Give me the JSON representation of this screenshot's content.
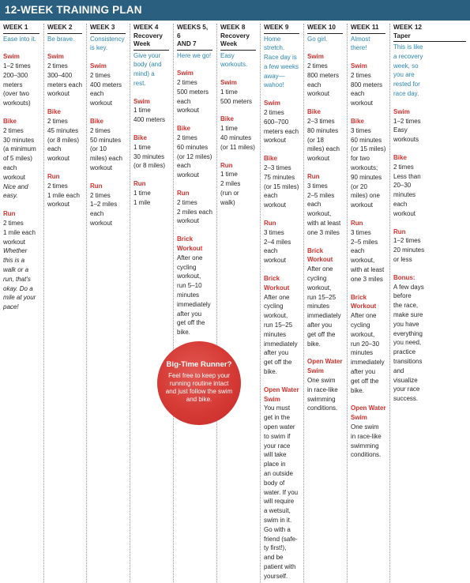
{
  "title": "12-WEEK TRAINING PLAN",
  "colors": {
    "header_bg": "#2a5f7f",
    "note": "#2c86b3",
    "section": "#d2322d",
    "badge": "#d63a35"
  },
  "badge": {
    "title": "Big-Time Runner?",
    "body": "Feel free to keep your running routine intact and just follow the swim and bike."
  },
  "weeks": [
    {
      "label": "WEEK 1",
      "note": "Ease into it.",
      "sections": [
        {
          "title": "Swim",
          "body": "1–2 times\n200–300\nmeters\n(over two\nworkouts)"
        },
        {
          "title": "Bike",
          "body": "2 times\n30 minutes\n(a minimum\nof 5 miles)\neach\nworkout",
          "extra": "Nice and\neasy."
        },
        {
          "title": "Run",
          "body": "2 times\n1 mile each\nworkout",
          "extra": "Whether\nthis is a\nwalk or a\nrun, that's\nokay. Do a\nmile at your\npace!"
        }
      ]
    },
    {
      "label": "WEEK 2",
      "note": "Be brave.",
      "sections": [
        {
          "title": "Swim",
          "body": "2 times\n300–400\nmeters each\nworkout"
        },
        {
          "title": "Bike",
          "body": "2 times\n45 minutes\n(or 8 miles)\neach\nworkout"
        },
        {
          "title": "Run",
          "body": "2 times\n1 mile each\nworkout"
        }
      ]
    },
    {
      "label": "WEEK 3",
      "note": "Consistency\nis key.",
      "sections": [
        {
          "title": "Swim",
          "body": "2 times\n400 meters\neach\nworkout"
        },
        {
          "title": "Bike",
          "body": "2 times\n50 minutes\n(or 10\nmiles) each\nworkout"
        },
        {
          "title": "Run",
          "body": "2 times\n1–2 miles\neach\nworkout"
        }
      ]
    },
    {
      "label": "WEEK 4",
      "sublabel": "Recovery\nWeek",
      "note": "Give your\nbody (and\nmind) a\nrest.",
      "sections": [
        {
          "title": "Swim",
          "body": "1 time\n400 meters"
        },
        {
          "title": "Bike",
          "body": "1 time\n30 minutes\n(or 8 miles)"
        },
        {
          "title": "Run",
          "body": "1 time\n1 mile"
        }
      ]
    },
    {
      "label": "WEEKS 5, 6\nAND 7",
      "note": "Here we go!",
      "sections": [
        {
          "title": "Swim",
          "body": "2 times\n500 meters\neach\nworkout"
        },
        {
          "title": "Bike",
          "body": "2 times\n60 minutes\n(or 12 miles)\neach\nworkout"
        },
        {
          "title": "Run",
          "body": "2 times\n2 miles each\nworkout"
        },
        {
          "title": "Brick\nWorkout",
          "body": "After one\ncycling\nworkout,\nrun 5–10\nminutes\nimmediately\nafter you\nget off the\nbike."
        }
      ]
    },
    {
      "label": "WEEK 8",
      "sublabel": "Recovery\nWeek",
      "note": "Easy\nworkouts.",
      "sections": [
        {
          "title": "Swim",
          "body": "1 time\n500 meters"
        },
        {
          "title": "Bike",
          "body": "1 time\n40 minutes\n(or 11 miles)"
        },
        {
          "title": "Run",
          "body": "1 time\n2 miles\n(run or\nwalk)"
        }
      ]
    },
    {
      "label": "WEEK 9",
      "note": "Home\nstretch.\nRace day is\na few weeks\naway—\nwahoo!",
      "sections": [
        {
          "title": "Swim",
          "body": "2 times\n600–700\nmeters each\nworkout"
        },
        {
          "title": "Bike",
          "body": "2–3 times\n75 minutes\n(or 15 miles)\neach\nworkout"
        },
        {
          "title": "Run",
          "body": "3 times\n2–4 miles\neach\nworkout"
        },
        {
          "title": "Brick\nWorkout",
          "body": "After one\ncycling\nworkout,\nrun 15–25\nminutes\nimmediately\nafter you\nget off the\nbike."
        },
        {
          "title": "Open Water\nSwim",
          "body": "You must\nget in the\nopen water\nto swim if\nyour race\nwill take\nplace in\nan outside\nbody of\nwater. If you\nwill require\na wetsuit,\nswim in it.\nGo with a\nfriend (safe-\nty first!),\nand be\npatient with\nyourself."
        }
      ]
    },
    {
      "label": "WEEK 10",
      "note": "Go girl.",
      "sections": [
        {
          "title": "Swim",
          "body": "2 times\n800 meters\neach\nworkout"
        },
        {
          "title": "Bike",
          "body": "2–3 times\n80 minutes\n(or 18\nmiles) each\nworkout"
        },
        {
          "title": "Run",
          "body": "3 times\n2–5 miles\neach\nworkout,\nwith at least\none 3 miles"
        },
        {
          "title": "Brick\nWorkout",
          "body": "After one\ncycling\nworkout,\nrun 15–25\nminutes\nimmediately\nafter you\nget off the\nbike."
        },
        {
          "title": "Open Water\nSwim",
          "body": "One swim\nin race-like\nswimming\nconditions."
        }
      ]
    },
    {
      "label": "WEEK 11",
      "note": "Almost\nthere!",
      "sections": [
        {
          "title": "Swim",
          "body": "2 times\n800 meters\neach\nworkout"
        },
        {
          "title": "Bike",
          "body": "3 times\n60 minutes\n(or 15 miles)\nfor two\nworkouts;\n90 minutes\n(or 20\nmiles) one\nworkout"
        },
        {
          "title": "Run",
          "body": "3 times\n2–5 miles\neach\nworkout,\nwith at least\none 3 miles"
        },
        {
          "title": "Brick\nWorkout",
          "body": "After one\ncycling\nworkout,\nrun 20–30\nminutes\nimmediately\nafter you\nget off the\nbike."
        },
        {
          "title": "Open Water\nSwim",
          "body": "One swim\nin race-like\nswimming\nconditions."
        }
      ]
    },
    {
      "label": "WEEK 12",
      "sublabel": "Taper",
      "note": "This is like\na recovery\nweek, so\nyou are\nrested for\nrace day.",
      "sections": [
        {
          "title": "Swim",
          "body": "1–2 times\nEasy\nworkouts"
        },
        {
          "title": "Bike",
          "body": "2 times\nLess than\n20–30\nminutes\neach\nworkout"
        },
        {
          "title": "Run",
          "body": "1–2 times\n20 minutes\nor less"
        },
        {
          "title": "Bonus:",
          "body": "A few days\nbefore\nthe race,\nmake sure\nyou have\neverything\nyou need,\npractice\ntransitions\nand\nvisualize\nyour race\nsuccess."
        }
      ]
    }
  ]
}
